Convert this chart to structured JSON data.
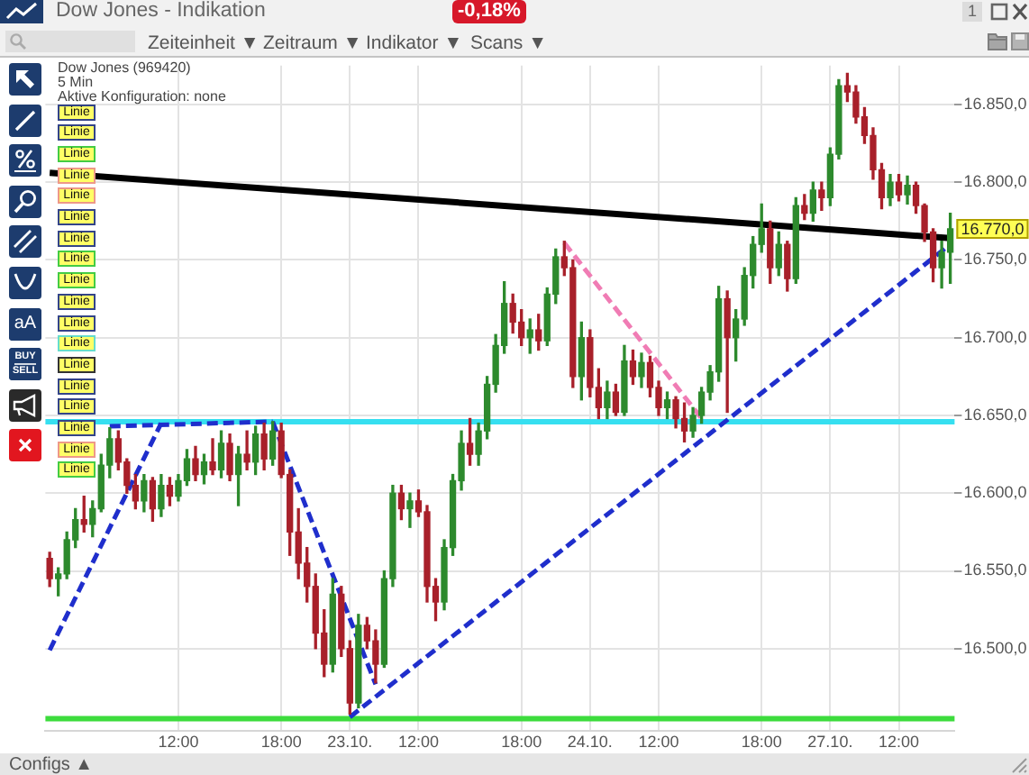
{
  "chart_data": {
    "type": "candlestick",
    "title": "Dow Jones - Indikation",
    "categories": [
      null,
      null,
      null,
      null,
      null,
      null,
      null,
      null,
      null,
      null,
      null,
      null,
      null,
      null,
      null,
      "12:00",
      null,
      null,
      null,
      null,
      null,
      null,
      null,
      null,
      null,
      null,
      null,
      "18:00",
      null,
      null,
      null,
      null,
      null,
      null,
      null,
      "23.10.",
      null,
      null,
      null,
      null,
      null,
      null,
      null,
      "12:00",
      null,
      null,
      null,
      null,
      null,
      null,
      null,
      null,
      null,
      null,
      null,
      "18:00",
      null,
      null,
      null,
      null,
      null,
      null,
      null,
      "24.10.",
      null,
      null,
      null,
      null,
      null,
      null,
      null,
      "12:00",
      null,
      null,
      null,
      null,
      null,
      null,
      null,
      null,
      null,
      null,
      null,
      "18:00",
      null,
      null,
      null,
      null,
      null,
      null,
      null,
      "27.10.",
      null,
      null,
      null,
      null,
      null,
      null,
      null,
      "12:00",
      null,
      null,
      null,
      null,
      null,
      null
    ],
    "ohlc": [
      [
        16558,
        16562,
        16540,
        16545
      ],
      [
        16545,
        16552,
        16534,
        16548
      ],
      [
        16548,
        16575,
        16545,
        16570
      ],
      [
        16570,
        16590,
        16565,
        16583
      ],
      [
        16583,
        16598,
        16575,
        16580
      ],
      [
        16580,
        16595,
        16572,
        16590
      ],
      [
        16590,
        16625,
        16588,
        16618
      ],
      [
        16618,
        16642,
        16610,
        16635
      ],
      [
        16635,
        16640,
        16615,
        16620
      ],
      [
        16620,
        16622,
        16600,
        16605
      ],
      [
        16605,
        16612,
        16590,
        16595
      ],
      [
        16595,
        16612,
        16588,
        16608
      ],
      [
        16608,
        16610,
        16582,
        16590
      ],
      [
        16590,
        16612,
        16585,
        16605
      ],
      [
        16605,
        16610,
        16592,
        16598
      ],
      [
        16598,
        16612,
        16595,
        16608
      ],
      [
        16608,
        16628,
        16605,
        16622
      ],
      [
        16622,
        16630,
        16608,
        16612
      ],
      [
        16612,
        16625,
        16606,
        16620
      ],
      [
        16620,
        16635,
        16612,
        16615
      ],
      [
        16615,
        16640,
        16610,
        16632
      ],
      [
        16632,
        16638,
        16608,
        16612
      ],
      [
        16612,
        16630,
        16592,
        16625
      ],
      [
        16625,
        16640,
        16615,
        16620
      ],
      [
        16620,
        16643,
        16612,
        16638
      ],
      [
        16638,
        16645,
        16615,
        16622
      ],
      [
        16622,
        16646,
        16618,
        16640
      ],
      [
        16640,
        16645,
        16610,
        16612
      ],
      [
        16612,
        16615,
        16560,
        16575
      ],
      [
        16575,
        16590,
        16545,
        16555
      ],
      [
        16555,
        16565,
        16530,
        16540
      ],
      [
        16540,
        16548,
        16500,
        16510
      ],
      [
        16510,
        16525,
        16482,
        16490
      ],
      [
        16490,
        16545,
        16485,
        16535
      ],
      [
        16535,
        16540,
        16495,
        16500
      ],
      [
        16500,
        16505,
        16458,
        16465
      ],
      [
        16465,
        16522,
        16462,
        16515
      ],
      [
        16515,
        16520,
        16500,
        16505
      ],
      [
        16505,
        16512,
        16478,
        16490
      ],
      [
        16490,
        16550,
        16488,
        16545
      ],
      [
        16545,
        16605,
        16540,
        16600
      ],
      [
        16600,
        16605,
        16583,
        16590
      ],
      [
        16590,
        16600,
        16578,
        16595
      ],
      [
        16595,
        16602,
        16585,
        16588
      ],
      [
        16588,
        16592,
        16530,
        16540
      ],
      [
        16540,
        16545,
        16518,
        16530
      ],
      [
        16530,
        16570,
        16525,
        16565
      ],
      [
        16565,
        16612,
        16560,
        16608
      ],
      [
        16608,
        16640,
        16602,
        16632
      ],
      [
        16632,
        16648,
        16618,
        16625
      ],
      [
        16625,
        16645,
        16618,
        16640
      ],
      [
        16640,
        16675,
        16635,
        16670
      ],
      [
        16670,
        16702,
        16665,
        16695
      ],
      [
        16695,
        16736,
        16690,
        16722
      ],
      [
        16722,
        16728,
        16703,
        16710
      ],
      [
        16710,
        16718,
        16695,
        16700
      ],
      [
        16700,
        16712,
        16690,
        16705
      ],
      [
        16705,
        16715,
        16692,
        16698
      ],
      [
        16698,
        16732,
        16695,
        16728
      ],
      [
        16728,
        16757,
        16722,
        16752
      ],
      [
        16752,
        16762,
        16740,
        16745
      ],
      [
        16745,
        16750,
        16668,
        16675
      ],
      [
        16675,
        16710,
        16660,
        16700
      ],
      [
        16700,
        16705,
        16662,
        16668
      ],
      [
        16668,
        16680,
        16648,
        16655
      ],
      [
        16655,
        16672,
        16648,
        16665
      ],
      [
        16665,
        16670,
        16650,
        16652
      ],
      [
        16652,
        16695,
        16650,
        16685
      ],
      [
        16685,
        16692,
        16670,
        16675
      ],
      [
        16675,
        16690,
        16668,
        16684
      ],
      [
        16684,
        16688,
        16662,
        16668
      ],
      [
        16668,
        16672,
        16650,
        16655
      ],
      [
        16655,
        16665,
        16648,
        16660
      ],
      [
        16660,
        16662,
        16642,
        16648
      ],
      [
        16648,
        16658,
        16633,
        16640
      ],
      [
        16640,
        16655,
        16636,
        16650
      ],
      [
        16650,
        16668,
        16645,
        16665
      ],
      [
        16665,
        16682,
        16660,
        16678
      ],
      [
        16678,
        16733,
        16672,
        16725
      ],
      [
        16725,
        16730,
        16652,
        16700
      ],
      [
        16700,
        16718,
        16685,
        16712
      ],
      [
        16712,
        16745,
        16708,
        16740
      ],
      [
        16740,
        16765,
        16732,
        16760
      ],
      [
        16760,
        16786,
        16755,
        16770
      ],
      [
        16770,
        16775,
        16735,
        16745
      ],
      [
        16745,
        16768,
        16740,
        16760
      ],
      [
        16760,
        16762,
        16730,
        16738
      ],
      [
        16738,
        16790,
        16735,
        16785
      ],
      [
        16785,
        16792,
        16776,
        16780
      ],
      [
        16780,
        16800,
        16775,
        16795
      ],
      [
        16795,
        16800,
        16782,
        16790
      ],
      [
        16790,
        16822,
        16785,
        16818
      ],
      [
        16818,
        16866,
        16815,
        16862
      ],
      [
        16862,
        16870,
        16852,
        16858
      ],
      [
        16858,
        16862,
        16838,
        16842
      ],
      [
        16842,
        16848,
        16825,
        16830
      ],
      [
        16830,
        16835,
        16802,
        16808
      ],
      [
        16808,
        16812,
        16783,
        16790
      ],
      [
        16790,
        16805,
        16785,
        16800
      ],
      [
        16800,
        16805,
        16788,
        16792
      ],
      [
        16792,
        16804,
        16786,
        16798
      ],
      [
        16798,
        16800,
        16780,
        16785
      ],
      [
        16785,
        16786,
        16762,
        16768
      ],
      [
        16768,
        16770,
        16736,
        16745
      ],
      [
        16745,
        16762,
        16732,
        16755
      ],
      [
        16755,
        16780,
        16735,
        16770
      ]
    ],
    "colors": [
      "#a8202a",
      "#2d8a2d",
      "#2d8a2d",
      "#2d8a2d",
      "#a8202a",
      "#2d8a2d",
      "#2d8a2d",
      "#2d8a2d",
      "#a8202a",
      "#a8202a",
      "#a8202a",
      "#2d8a2d",
      "#a8202a",
      "#2d8a2d",
      "#a8202a",
      "#2d8a2d",
      "#2d8a2d",
      "#a8202a",
      "#2d8a2d",
      "#a8202a",
      "#2d8a2d",
      "#a8202a",
      "#2d8a2d",
      "#a8202a",
      "#2d8a2d",
      "#a8202a",
      "#2d8a2d",
      "#a8202a",
      "#a8202a",
      "#a8202a",
      "#a8202a",
      "#a8202a",
      "#a8202a",
      "#2d8a2d",
      "#a8202a",
      "#a8202a",
      "#2d8a2d",
      "#a8202a",
      "#a8202a",
      "#2d8a2d",
      "#2d8a2d",
      "#a8202a",
      "#2d8a2d",
      "#a8202a",
      "#a8202a",
      "#a8202a",
      "#2d8a2d",
      "#2d8a2d",
      "#2d8a2d",
      "#a8202a",
      "#2d8a2d",
      "#2d8a2d",
      "#2d8a2d",
      "#2d8a2d",
      "#a8202a",
      "#a8202a",
      "#2d8a2d",
      "#a8202a",
      "#2d8a2d",
      "#2d8a2d",
      "#a8202a",
      "#a8202a",
      "#2d8a2d",
      "#a8202a",
      "#a8202a",
      "#2d8a2d",
      "#a8202a",
      "#2d8a2d",
      "#a8202a",
      "#2d8a2d",
      "#a8202a",
      "#a8202a",
      "#2d8a2d",
      "#a8202a",
      "#a8202a",
      "#2d8a2d",
      "#2d8a2d",
      "#2d8a2d",
      "#2d8a2d",
      "#a8202a",
      "#2d8a2d",
      "#2d8a2d",
      "#2d8a2d",
      "#2d8a2d",
      "#a8202a",
      "#2d8a2d",
      "#a8202a",
      "#2d8a2d",
      "#a8202a",
      "#2d8a2d",
      "#a8202a",
      "#2d8a2d",
      "#2d8a2d",
      "#a8202a",
      "#a8202a",
      "#a8202a",
      "#a8202a",
      "#a8202a",
      "#2d8a2d",
      "#a8202a",
      "#2d8a2d",
      "#a8202a",
      "#a8202a",
      "#a8202a",
      "#2d8a2d",
      "#2d8a2d"
    ],
    "series": [
      {
        "type": "line",
        "color": "#000000",
        "values": [
          16806,
          null,
          null,
          null,
          null,
          null,
          null,
          null,
          null,
          null,
          null,
          null,
          null,
          null,
          null,
          null,
          null,
          null,
          null,
          null,
          null,
          null,
          null,
          null,
          null,
          null,
          null,
          null,
          null,
          null,
          null,
          null,
          null,
          null,
          null,
          null,
          null,
          null,
          null,
          null,
          null,
          null,
          null,
          null,
          null,
          null,
          null,
          null,
          null,
          null,
          null,
          null,
          null,
          null,
          null,
          null,
          null,
          null,
          null,
          null,
          null,
          null,
          null,
          null,
          null,
          null,
          null,
          null,
          null,
          null,
          null,
          null,
          null,
          null,
          null,
          null,
          null,
          null,
          null,
          null,
          null,
          null,
          null,
          null,
          null,
          null,
          null,
          null,
          null,
          null,
          null,
          null,
          null,
          null,
          null,
          null,
          null,
          null,
          null,
          null,
          null,
          null,
          null,
          null,
          null,
          16764
        ]
      },
      {
        "type": "line",
        "color": "#1f2ecc",
        "line_style": "dashed",
        "values": [
          16499,
          null,
          null,
          null,
          null,
          null,
          null,
          null,
          null,
          null,
          null,
          null,
          null,
          16645,
          null,
          null,
          null,
          null,
          null,
          null,
          null,
          null,
          null,
          null,
          null,
          null,
          null,
          null,
          null,
          null,
          null,
          null,
          null,
          null,
          null,
          null,
          null,
          null,
          null,
          null,
          null,
          null,
          null,
          null,
          null,
          null,
          null,
          null,
          null,
          null,
          null,
          null,
          null,
          null,
          null,
          null,
          null,
          null,
          null,
          null,
          null,
          null,
          null,
          null,
          null,
          null,
          null,
          null,
          null,
          null,
          null,
          null,
          null,
          null,
          null,
          null,
          null,
          null,
          null,
          null,
          null,
          null,
          null,
          null,
          null,
          null,
          null,
          null,
          null,
          null,
          null,
          null,
          null,
          null,
          null,
          null,
          null,
          null,
          null,
          null,
          null,
          null,
          null,
          null,
          null,
          null
        ]
      },
      {
        "type": "line",
        "color": "#1f2ecc",
        "line_style": "dashed",
        "values": [
          null,
          null,
          null,
          null,
          null,
          null,
          null,
          16643,
          null,
          null,
          null,
          null,
          null,
          null,
          null,
          null,
          null,
          null,
          null,
          null,
          null,
          null,
          null,
          null,
          null,
          null,
          16646,
          null,
          null,
          null,
          null,
          null,
          null,
          null,
          null,
          null,
          null,
          null,
          null,
          null,
          null,
          null,
          null,
          null,
          null,
          null,
          null,
          null,
          null,
          null,
          null,
          null,
          null,
          null,
          null,
          null,
          null,
          null,
          null,
          null,
          null,
          null,
          null,
          null,
          null,
          null,
          null,
          null,
          null,
          null,
          null,
          null,
          null,
          null,
          null,
          null,
          null,
          null,
          null,
          null,
          null,
          null,
          null,
          null,
          null,
          null,
          null,
          null,
          null,
          null,
          null,
          null,
          null,
          null,
          null,
          null,
          null,
          null,
          null,
          null,
          null,
          null,
          null,
          null,
          null,
          null
        ]
      },
      {
        "type": "line",
        "color": "#1f2ecc",
        "line_style": "dashed",
        "values": [
          null,
          null,
          null,
          null,
          null,
          null,
          null,
          null,
          null,
          null,
          null,
          null,
          null,
          null,
          null,
          null,
          null,
          null,
          null,
          null,
          null,
          null,
          null,
          null,
          null,
          null,
          16646,
          null,
          null,
          null,
          null,
          null,
          null,
          null,
          null,
          null,
          null,
          null,
          16477,
          null,
          null,
          null,
          null,
          null,
          null,
          null,
          null,
          null,
          null,
          null,
          null,
          null,
          null,
          null,
          null,
          null,
          null,
          null,
          null,
          null,
          null,
          null,
          null,
          null,
          null,
          null,
          null,
          null,
          null,
          null,
          null,
          null,
          null,
          null,
          null,
          null,
          null,
          null,
          null,
          null,
          null,
          null,
          null,
          null,
          null,
          null,
          null,
          null,
          null,
          null,
          null,
          null,
          null,
          null,
          null,
          null,
          null,
          null,
          null,
          null,
          null,
          null,
          null,
          null,
          null,
          null
        ]
      },
      {
        "type": "line",
        "color": "#1f2ecc",
        "line_style": "dashed",
        "values": [
          null,
          null,
          null,
          null,
          null,
          null,
          null,
          null,
          null,
          null,
          null,
          null,
          null,
          null,
          null,
          null,
          null,
          null,
          null,
          null,
          null,
          null,
          null,
          null,
          null,
          null,
          null,
          null,
          null,
          null,
          null,
          null,
          null,
          null,
          null,
          16456,
          null,
          null,
          null,
          null,
          null,
          null,
          null,
          null,
          null,
          null,
          null,
          null,
          null,
          null,
          null,
          null,
          null,
          null,
          null,
          null,
          null,
          null,
          null,
          null,
          null,
          null,
          null,
          null,
          null,
          null,
          null,
          null,
          null,
          null,
          null,
          null,
          null,
          null,
          null,
          null,
          null,
          null,
          null,
          null,
          null,
          null,
          null,
          null,
          null,
          null,
          null,
          null,
          null,
          null,
          null,
          null,
          null,
          null,
          null,
          null,
          null,
          null,
          null,
          null,
          null,
          null,
          null,
          null,
          null,
          16760
        ]
      },
      {
        "type": "line",
        "color": "#f07cb4",
        "line_style": "dashed",
        "values": [
          null,
          null,
          null,
          null,
          null,
          null,
          null,
          null,
          null,
          null,
          null,
          null,
          null,
          null,
          null,
          null,
          null,
          null,
          null,
          null,
          null,
          null,
          null,
          null,
          null,
          null,
          null,
          null,
          null,
          null,
          null,
          null,
          null,
          null,
          null,
          null,
          null,
          null,
          null,
          null,
          null,
          null,
          null,
          null,
          null,
          null,
          null,
          null,
          null,
          null,
          null,
          null,
          null,
          null,
          null,
          null,
          null,
          null,
          null,
          null,
          16761,
          null,
          null,
          null,
          null,
          null,
          null,
          null,
          null,
          null,
          null,
          null,
          null,
          null,
          null,
          null,
          16648,
          null,
          null,
          null,
          null,
          null,
          null,
          null,
          null,
          null,
          null,
          null,
          null,
          null,
          null,
          null,
          null,
          null,
          null,
          null,
          null,
          null,
          null,
          null,
          null,
          null,
          null,
          null,
          null,
          null
        ]
      }
    ],
    "ylim": [
      16447,
      16875
    ],
    "yticks": [
      {
        "value": 16500,
        "label": "16.500,0"
      },
      {
        "value": 16550,
        "label": "16.550,0"
      },
      {
        "value": 16600,
        "label": "16.600,0"
      },
      {
        "value": 16650,
        "label": "16.650,0"
      },
      {
        "value": 16700,
        "label": "16.700,0"
      },
      {
        "value": 16750,
        "label": "16.750,0"
      },
      {
        "value": 16800,
        "label": "16.800,0"
      },
      {
        "value": 16850,
        "label": "16.850,0"
      }
    ],
    "grid": true,
    "ref_lines": [
      {
        "axis": "y",
        "value": 16646,
        "color": "#36dff0"
      },
      {
        "axis": "y",
        "value": 16455,
        "color": "#3ddc3d"
      }
    ],
    "annotations": [
      "16.770,0",
      "Dow Jones (969420)",
      "5 Min",
      "Aktive Konfiguration: none",
      "-0,18%",
      "Zeiteinheit ▼",
      "Zeitraum ▼",
      "Indikator ▼",
      "Scans ▼",
      "1",
      "Linie",
      "Linie",
      "Linie",
      "Linie",
      "Linie",
      "Linie",
      "Linie",
      "Linie",
      "Linie",
      "Linie",
      "Linie",
      "Linie",
      "Linie",
      "Linie",
      "Linie",
      "Linie",
      "Linie",
      "Linie",
      "aA",
      "BUY",
      "SELL",
      "Configs ▲"
    ]
  }
}
